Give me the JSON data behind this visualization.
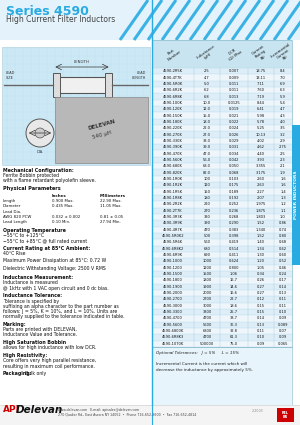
{
  "title_series": "Series 4590",
  "title_sub": "High Current Filter Inductors",
  "title_color": "#29abe2",
  "subtitle_color": "#444444",
  "bg_color": "#ffffff",
  "blue_stripe": "#29abe2",
  "light_blue_bg": "#d6eef8",
  "api_red": "#cc0000",
  "table_data": [
    [
      "4590-2R5K",
      "2.5",
      "0.007",
      "18.75",
      "8.4"
    ],
    [
      "4590-4T7K",
      "4.7",
      "0.009",
      "13.11",
      "7.0"
    ],
    [
      "4590-5R0K",
      "5.0",
      "0.011",
      "7.11",
      "6.9"
    ],
    [
      "4590-6R2K",
      "6.2",
      "0.011",
      "7.60",
      "6.3"
    ],
    [
      "4590-6R8K",
      "6.8",
      "0.013",
      "7.19",
      "5.9"
    ],
    [
      "4590-100K",
      "10.0",
      "0.0125",
      "8.44",
      "5.4"
    ],
    [
      "4590-120K",
      "12.0",
      "0.019",
      "6.41",
      "4.7"
    ],
    [
      "4590-150K",
      "15.0",
      "0.021",
      "5.98",
      "4.3"
    ],
    [
      "4590-180K",
      "18.0",
      "0.022",
      "5.78",
      "4.0"
    ],
    [
      "4590-220K",
      "22.0",
      "0.024",
      "5.25",
      "3.5"
    ],
    [
      "4590-270K",
      "27.0",
      "0.026",
      "10.13",
      "3.2"
    ],
    [
      "4590-330K",
      "33.0",
      "0.029",
      "4.02",
      "2.9"
    ],
    [
      "4590-390K",
      "39.0",
      "0.031",
      "4.62",
      "2.75"
    ],
    [
      "4590-470K",
      "47.0",
      "0.034",
      "4.40",
      "2.5"
    ],
    [
      "4590-560K",
      "56.0",
      "0.042",
      "3.93",
      "2.3"
    ],
    [
      "4590-680K",
      "68.0",
      "0.050",
      "3.355",
      "2.1"
    ],
    [
      "4590-820K",
      "82.0",
      "0.068",
      "3.175",
      "1.9"
    ],
    [
      "4590-1R0K",
      "100",
      "0.103",
      "2.60",
      "1.6"
    ],
    [
      "4590-1R2K",
      "120",
      "0.175",
      "2.63",
      "1.6"
    ],
    [
      "4590-1R5K",
      "150",
      "0.189",
      "2.27",
      "1.4"
    ],
    [
      "4590-1R8K",
      "180",
      "0.192",
      "2.07",
      "1.3"
    ],
    [
      "4590-2R2K",
      "220",
      "0.252",
      "1.975",
      "1.2"
    ],
    [
      "4590-2T7K",
      "270",
      "0.236",
      "1.875",
      "1.1"
    ],
    [
      "4590-3R3K",
      "330",
      "0.268",
      "1.803",
      "1.0"
    ],
    [
      "4590-3R9K",
      "390",
      "0.290",
      "1.52",
      "0.86"
    ],
    [
      "4590-4R7K",
      "470",
      "0.383",
      "1.340",
      "0.74"
    ],
    [
      "4590-5R0K2",
      "500",
      "0.398",
      "1.52",
      "0.80"
    ],
    [
      "4590-5R6K",
      "560",
      "0.419",
      "1.40",
      "0.68"
    ],
    [
      "4590-6R8K2",
      "680",
      "0.514",
      "1.34",
      "0.62"
    ],
    [
      "4590-6R9K",
      "690",
      "0.411",
      "1.30",
      "0.60"
    ],
    [
      "4590-1000",
      "1000",
      "0.624",
      "1.20",
      "0.52"
    ],
    [
      "4590-1200",
      "1200",
      "0.800",
      "1.05",
      "0.46"
    ],
    [
      "4590-1500",
      "1500",
      "1.06",
      "0.34",
      "0.24"
    ],
    [
      "4590-1800",
      "1800",
      "16.7",
      "0.26",
      "0.17"
    ],
    [
      "4590-1900",
      "1900",
      "14.6",
      "0.27",
      "0.14"
    ],
    [
      "4590-2000",
      "2000",
      "16.6",
      "0.27",
      "0.13"
    ],
    [
      "4590-2700",
      "2700",
      "22.7",
      "0.12",
      "0.11"
    ],
    [
      "4590-3000",
      "3000",
      "18.6",
      "0.15",
      "0.11"
    ],
    [
      "4590-3300",
      "3300",
      "25.7",
      "0.15",
      "0.10"
    ],
    [
      "4590-4700",
      "4700",
      "33.7",
      "0.14",
      "0.09"
    ],
    [
      "4590-5600",
      "5600",
      "36.3",
      "0.13",
      "0.089"
    ],
    [
      "4590-6800K",
      "6800",
      "32.8",
      "0.11",
      "0.07"
    ],
    [
      "4590-6R8K3",
      "4700",
      "61.3",
      "0.10",
      "0.09"
    ],
    [
      "4590-1070K",
      "500000",
      "75.0",
      "0.09",
      "0.065"
    ]
  ],
  "col_headers": [
    "Part Number",
    "Inductance\n(uH)",
    "DCR\n(Ohm) Max",
    "Current\nRating (A)",
    "Incremental\nCurrent (A)"
  ],
  "optional_tol": "Optional Tolerances:   J = 5%     L = 15%",
  "incremental_note1": "Incremental Current is the current which will",
  "incremental_note2": "decrease the inductance by approximately 5%.",
  "footer_line1": "www.delevan.com   E-mail: apisales@delevan.com",
  "footer_line2": "270 Quaker Rd., East Aurora NY 14052  •  Phone 716-652-3600  •  Fax 716-652-4814",
  "footer_small": "2-2003",
  "power_inductors_label": "POWER INDUCTORS"
}
